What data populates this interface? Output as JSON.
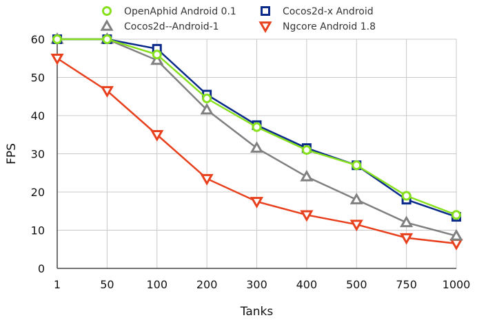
{
  "chart_data": {
    "type": "line",
    "title": "",
    "xlabel": "Tanks",
    "ylabel": "FPS",
    "categories": [
      "1",
      "50",
      "100",
      "200",
      "300",
      "400",
      "500",
      "750",
      "1000"
    ],
    "ylim": [
      0,
      60
    ],
    "yticks": [
      0,
      10,
      20,
      30,
      40,
      50,
      60
    ],
    "grid": true,
    "legend_position": "top",
    "series": [
      {
        "name": "OpenAphid Android 0.1",
        "marker": "circle",
        "color": "#86e01c",
        "values": [
          60,
          60,
          56,
          44.5,
          37,
          31,
          27,
          19,
          14
        ]
      },
      {
        "name": "Cocos2d-x Android",
        "marker": "square",
        "color": "#0a2a8a",
        "values": [
          60,
          60,
          57.5,
          45.5,
          37.5,
          31.5,
          27,
          18,
          13.5
        ]
      },
      {
        "name": "Cocos2d--Android-1",
        "marker": "triangle-up",
        "color": "#808080",
        "values": [
          60,
          60,
          54.5,
          41.5,
          31.5,
          24,
          18,
          12,
          8.5
        ]
      },
      {
        "name": "Ngcore Android 1.8",
        "marker": "triangle-down",
        "color": "#e8401c",
        "values": [
          55,
          46.5,
          35,
          23.5,
          17.5,
          14,
          11.5,
          8,
          6.5
        ]
      }
    ]
  }
}
